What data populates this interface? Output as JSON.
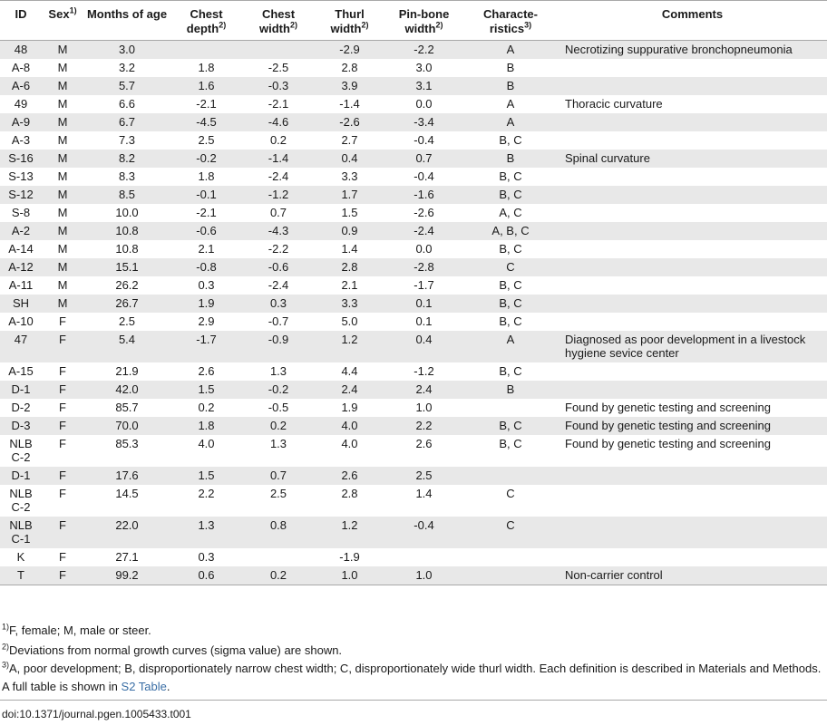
{
  "table": {
    "headers": {
      "id": "ID",
      "sex": "Sex",
      "sex_sup": "1)",
      "months": "Months of age",
      "chest_depth": "Chest depth",
      "chest_depth_sup": "2)",
      "chest_width": "Chest width",
      "chest_width_sup": "2)",
      "thurl_width": "Thurl width",
      "thurl_width_sup": "2)",
      "pin_bone_width": "Pin-bone width",
      "pin_bone_width_sup": "2)",
      "characteristics": "Characte-ristics",
      "characteristics_sup": "3)",
      "comments": "Comments"
    },
    "rows": [
      {
        "id": "48",
        "sex": "M",
        "months": "3.0",
        "chest_depth": "",
        "chest_width": "",
        "thurl_width": "-2.9",
        "pin_bone_width": "-2.2",
        "characteristics": "A",
        "comments": "Necrotizing suppurative bronchopneumonia"
      },
      {
        "id": "A-8",
        "sex": "M",
        "months": "3.2",
        "chest_depth": "1.8",
        "chest_width": "-2.5",
        "thurl_width": "2.8",
        "pin_bone_width": "3.0",
        "characteristics": "B",
        "comments": ""
      },
      {
        "id": "A-6",
        "sex": "M",
        "months": "5.7",
        "chest_depth": "1.6",
        "chest_width": "-0.3",
        "thurl_width": "3.9",
        "pin_bone_width": "3.1",
        "characteristics": "B",
        "comments": ""
      },
      {
        "id": "49",
        "sex": "M",
        "months": "6.6",
        "chest_depth": "-2.1",
        "chest_width": "-2.1",
        "thurl_width": "-1.4",
        "pin_bone_width": "0.0",
        "characteristics": "A",
        "comments": "Thoracic curvature"
      },
      {
        "id": "A-9",
        "sex": "M",
        "months": "6.7",
        "chest_depth": "-4.5",
        "chest_width": "-4.6",
        "thurl_width": "-2.6",
        "pin_bone_width": "-3.4",
        "characteristics": "A",
        "comments": ""
      },
      {
        "id": "A-3",
        "sex": "M",
        "months": "7.3",
        "chest_depth": "2.5",
        "chest_width": "0.2",
        "thurl_width": "2.7",
        "pin_bone_width": "-0.4",
        "characteristics": "B, C",
        "comments": ""
      },
      {
        "id": "S-16",
        "sex": "M",
        "months": "8.2",
        "chest_depth": "-0.2",
        "chest_width": "-1.4",
        "thurl_width": "0.4",
        "pin_bone_width": "0.7",
        "characteristics": "B",
        "comments": "Spinal curvature"
      },
      {
        "id": "S-13",
        "sex": "M",
        "months": "8.3",
        "chest_depth": "1.8",
        "chest_width": "-2.4",
        "thurl_width": "3.3",
        "pin_bone_width": "-0.4",
        "characteristics": "B, C",
        "comments": ""
      },
      {
        "id": "S-12",
        "sex": "M",
        "months": "8.5",
        "chest_depth": "-0.1",
        "chest_width": "-1.2",
        "thurl_width": "1.7",
        "pin_bone_width": "-1.6",
        "characteristics": "B, C",
        "comments": ""
      },
      {
        "id": "S-8",
        "sex": "M",
        "months": "10.0",
        "chest_depth": "-2.1",
        "chest_width": "0.7",
        "thurl_width": "1.5",
        "pin_bone_width": "-2.6",
        "characteristics": "A, C",
        "comments": ""
      },
      {
        "id": "A-2",
        "sex": "M",
        "months": "10.8",
        "chest_depth": "-0.6",
        "chest_width": "-4.3",
        "thurl_width": "0.9",
        "pin_bone_width": "-2.4",
        "characteristics": "A, B, C",
        "comments": ""
      },
      {
        "id": "A-14",
        "sex": "M",
        "months": "10.8",
        "chest_depth": "2.1",
        "chest_width": "-2.2",
        "thurl_width": "1.4",
        "pin_bone_width": "0.0",
        "characteristics": "B, C",
        "comments": ""
      },
      {
        "id": "A-12",
        "sex": "M",
        "months": "15.1",
        "chest_depth": "-0.8",
        "chest_width": "-0.6",
        "thurl_width": "2.8",
        "pin_bone_width": "-2.8",
        "characteristics": "C",
        "comments": ""
      },
      {
        "id": "A-11",
        "sex": "M",
        "months": "26.2",
        "chest_depth": "0.3",
        "chest_width": "-2.4",
        "thurl_width": "2.1",
        "pin_bone_width": "-1.7",
        "characteristics": "B, C",
        "comments": ""
      },
      {
        "id": "SH",
        "sex": "M",
        "months": "26.7",
        "chest_depth": "1.9",
        "chest_width": "0.3",
        "thurl_width": "3.3",
        "pin_bone_width": "0.1",
        "characteristics": "B, C",
        "comments": ""
      },
      {
        "id": "A-10",
        "sex": "F",
        "months": "2.5",
        "chest_depth": "2.9",
        "chest_width": "-0.7",
        "thurl_width": "5.0",
        "pin_bone_width": "0.1",
        "characteristics": "B, C",
        "comments": ""
      },
      {
        "id": "47",
        "sex": "F",
        "months": "5.4",
        "chest_depth": "-1.7",
        "chest_width": "-0.9",
        "thurl_width": "1.2",
        "pin_bone_width": "0.4",
        "characteristics": "A",
        "comments": "Diagnosed as poor development in a livestock hygiene sevice center"
      },
      {
        "id": "A-15",
        "sex": "F",
        "months": "21.9",
        "chest_depth": "2.6",
        "chest_width": "1.3",
        "thurl_width": "4.4",
        "pin_bone_width": "-1.2",
        "characteristics": "B, C",
        "comments": ""
      },
      {
        "id": "D-1",
        "sex": "F",
        "months": "42.0",
        "chest_depth": "1.5",
        "chest_width": "-0.2",
        "thurl_width": "2.4",
        "pin_bone_width": "2.4",
        "characteristics": "B",
        "comments": ""
      },
      {
        "id": "D-2",
        "sex": "F",
        "months": "85.7",
        "chest_depth": "0.2",
        "chest_width": "-0.5",
        "thurl_width": "1.9",
        "pin_bone_width": "1.0",
        "characteristics": "",
        "comments": "Found by genetic testing and screening"
      },
      {
        "id": "D-3",
        "sex": "F",
        "months": "70.0",
        "chest_depth": "1.8",
        "chest_width": "0.2",
        "thurl_width": "4.0",
        "pin_bone_width": "2.2",
        "characteristics": "B, C",
        "comments": "Found by genetic testing and screening"
      },
      {
        "id": "NLBC-2",
        "sex": "F",
        "months": "85.3",
        "chest_depth": "4.0",
        "chest_width": "1.3",
        "thurl_width": "4.0",
        "pin_bone_width": "2.6",
        "characteristics": "B, C",
        "comments": "Found by genetic testing and screening"
      },
      {
        "id": "D-1",
        "sex": "F",
        "months": "17.6",
        "chest_depth": "1.5",
        "chest_width": "0.7",
        "thurl_width": "2.6",
        "pin_bone_width": "2.5",
        "characteristics": "",
        "comments": ""
      },
      {
        "id": "NLBC-2",
        "sex": "F",
        "months": "14.5",
        "chest_depth": "2.2",
        "chest_width": "2.5",
        "thurl_width": "2.8",
        "pin_bone_width": "1.4",
        "characteristics": "C",
        "comments": ""
      },
      {
        "id": "NLBC-1",
        "sex": "F",
        "months": "22.0",
        "chest_depth": "1.3",
        "chest_width": "0.8",
        "thurl_width": "1.2",
        "pin_bone_width": "-0.4",
        "characteristics": "C",
        "comments": ""
      },
      {
        "id": "K",
        "sex": "F",
        "months": "27.1",
        "chest_depth": "0.3",
        "chest_width": "",
        "thurl_width": "-1.9",
        "pin_bone_width": "",
        "characteristics": "",
        "comments": ""
      },
      {
        "id": "T",
        "sex": "F",
        "months": "99.2",
        "chest_depth": "0.6",
        "chest_width": "0.2",
        "thurl_width": "1.0",
        "pin_bone_width": "1.0",
        "characteristics": "",
        "comments": "Non-carrier control"
      }
    ]
  },
  "footnotes": {
    "fn1_sup": "1)",
    "fn1_text": "F, female; M, male or steer.",
    "fn2_sup": "2)",
    "fn2_text": "Deviations from normal growth curves (sigma value) are shown.",
    "fn3_sup": "3)",
    "fn3_text": "A, poor development; B, disproportionately narrow chest width; C, disproportionately wide thurl width. Each definition is described in Materials and Methods. A full table is shown in ",
    "fn3_link": "S2 Table",
    "fn3_end": "."
  },
  "doi": "doi:10.1371/journal.pgen.1005433.t001",
  "colors": {
    "row_shade": "#e8e8e8",
    "link": "#3a6ea5"
  }
}
